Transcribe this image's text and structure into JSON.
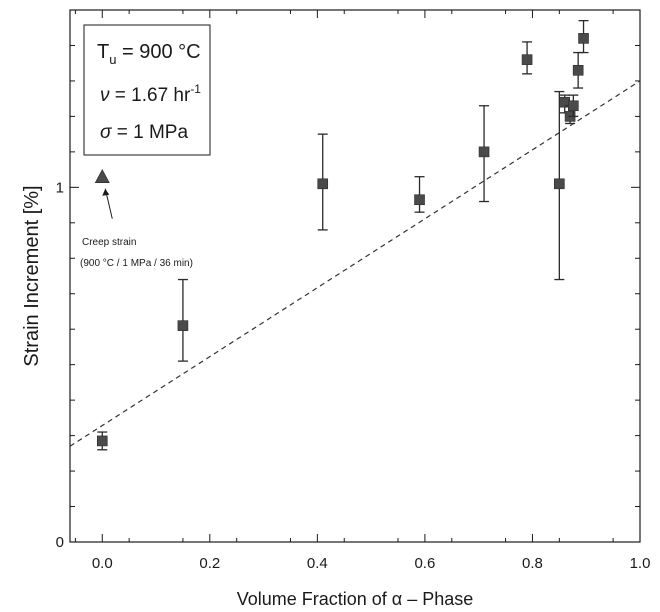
{
  "chart_data": {
    "type": "scatter",
    "xlabel": "Volume Fraction of α – Phase",
    "ylabel": "Strain Increment [%]",
    "xlim": [
      -0.06,
      1.0
    ],
    "ylim": [
      0,
      1.5
    ],
    "x_ticks": [
      "0.0",
      "0.2",
      "0.4",
      "0.6",
      "0.8",
      "1.0"
    ],
    "y_ticks": [
      "0",
      "1"
    ],
    "grid": false,
    "legend": {
      "placement": "top-left",
      "line1_main": "T",
      "line1_sub": "u",
      "line1_rest": " = 900 °C",
      "line2_sym": "ν",
      "line2_rest": " = 1.67 hr",
      "line2_sup": "-1",
      "line3_sym": "σ",
      "line3_rest": " = 1 MPa"
    },
    "series": [
      {
        "marker": "square",
        "color": "#4a4a4a",
        "points": [
          {
            "x": 0.0,
            "y": 0.285,
            "err_low": 0.26,
            "err_high": 0.31
          },
          {
            "x": 0.15,
            "y": 0.61,
            "err_low": 0.51,
            "err_high": 0.74
          },
          {
            "x": 0.41,
            "y": 1.01,
            "err_low": 0.88,
            "err_high": 1.15
          },
          {
            "x": 0.59,
            "y": 0.965,
            "err_low": 0.93,
            "err_high": 1.03
          },
          {
            "x": 0.71,
            "y": 1.1,
            "err_low": 0.96,
            "err_high": 1.23
          },
          {
            "x": 0.79,
            "y": 1.36,
            "err_low": 1.32,
            "err_high": 1.41
          },
          {
            "x": 0.85,
            "y": 1.01,
            "err_low": 0.74,
            "err_high": 1.27
          },
          {
            "x": 0.86,
            "y": 1.24,
            "err_low": 1.21,
            "err_high": 1.26
          },
          {
            "x": 0.87,
            "y": 1.2,
            "err_low": 1.18,
            "err_high": 1.23
          },
          {
            "x": 0.876,
            "y": 1.23,
            "err_low": 1.2,
            "err_high": 1.26
          },
          {
            "x": 0.885,
            "y": 1.33,
            "err_low": 1.28,
            "err_high": 1.38
          },
          {
            "x": 0.895,
            "y": 1.42,
            "err_low": 1.38,
            "err_high": 1.47
          }
        ]
      }
    ],
    "creep_point": {
      "x": 0.0,
      "y": 1.03,
      "marker": "triangle"
    },
    "annotation": {
      "line1": "Creep strain",
      "line2": "(900 °C / 1 MPa / 36 min)"
    },
    "fit_line": {
      "style": "dashed",
      "x1": -0.06,
      "y1": 0.27,
      "x2": 1.0,
      "y2": 1.3
    }
  }
}
